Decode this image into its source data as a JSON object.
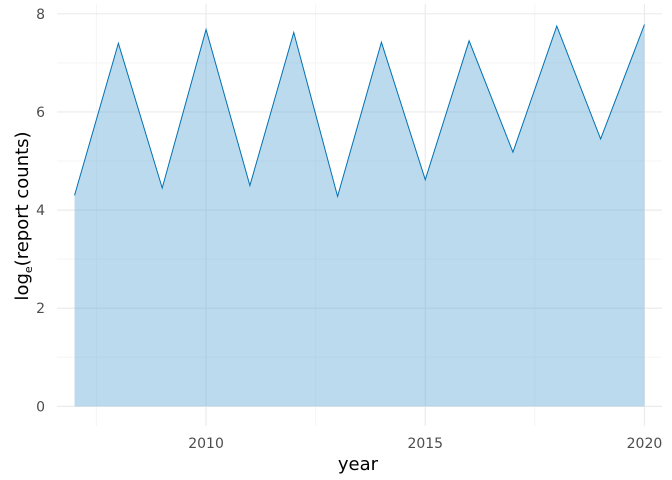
{
  "chart_data": {
    "type": "area",
    "title": "",
    "xlabel": "year",
    "ylabel": {
      "prefix": "log",
      "subscript": "e",
      "suffix": "(report counts)"
    },
    "x": [
      2007,
      2008,
      2009,
      2010,
      2011,
      2012,
      2013,
      2014,
      2015,
      2016,
      2017,
      2018,
      2019,
      2020
    ],
    "values": [
      4.3,
      7.4,
      4.45,
      7.68,
      4.5,
      7.62,
      4.28,
      7.42,
      4.62,
      7.45,
      5.18,
      7.75,
      5.45,
      7.78
    ],
    "xlim": [
      2006.6,
      2020.4
    ],
    "ylim": [
      -0.4,
      8.2
    ],
    "x_ticks": [
      2010,
      2015,
      2020
    ],
    "y_ticks": [
      0,
      2,
      4,
      6,
      8
    ],
    "grid": true,
    "colors": {
      "line": "#0072b2",
      "fill": "#6baed6",
      "fill_opacity": 0.45,
      "grid_major": "#ebebeb",
      "grid_minor": "#f5f5f5"
    }
  }
}
